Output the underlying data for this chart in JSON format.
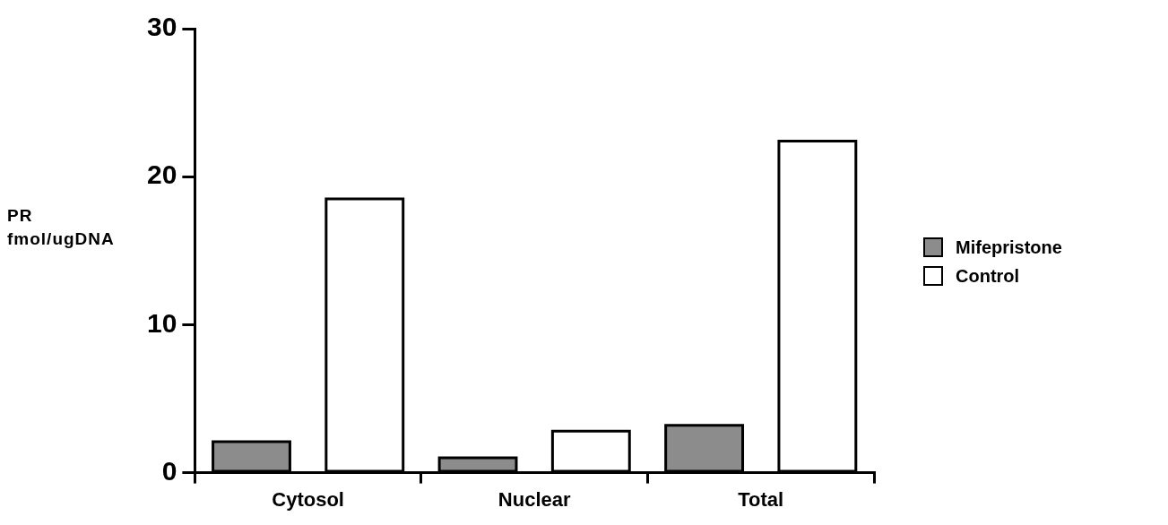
{
  "chart_data": {
    "type": "bar",
    "ylabel": "PR\nfmol/ugDNA",
    "categories": [
      "Cytosol",
      "Nuclear",
      "Total"
    ],
    "series": [
      {
        "name": "Mifepristone",
        "color": "#8c8c8c",
        "values": [
          2.1,
          1.0,
          3.2
        ]
      },
      {
        "name": "Control",
        "color": "#ffffff",
        "values": [
          18.5,
          2.8,
          22.4
        ]
      }
    ],
    "ylim": [
      0,
      30
    ],
    "yticks": [
      0,
      10,
      20,
      30
    ],
    "grid": false,
    "legend": "right"
  }
}
